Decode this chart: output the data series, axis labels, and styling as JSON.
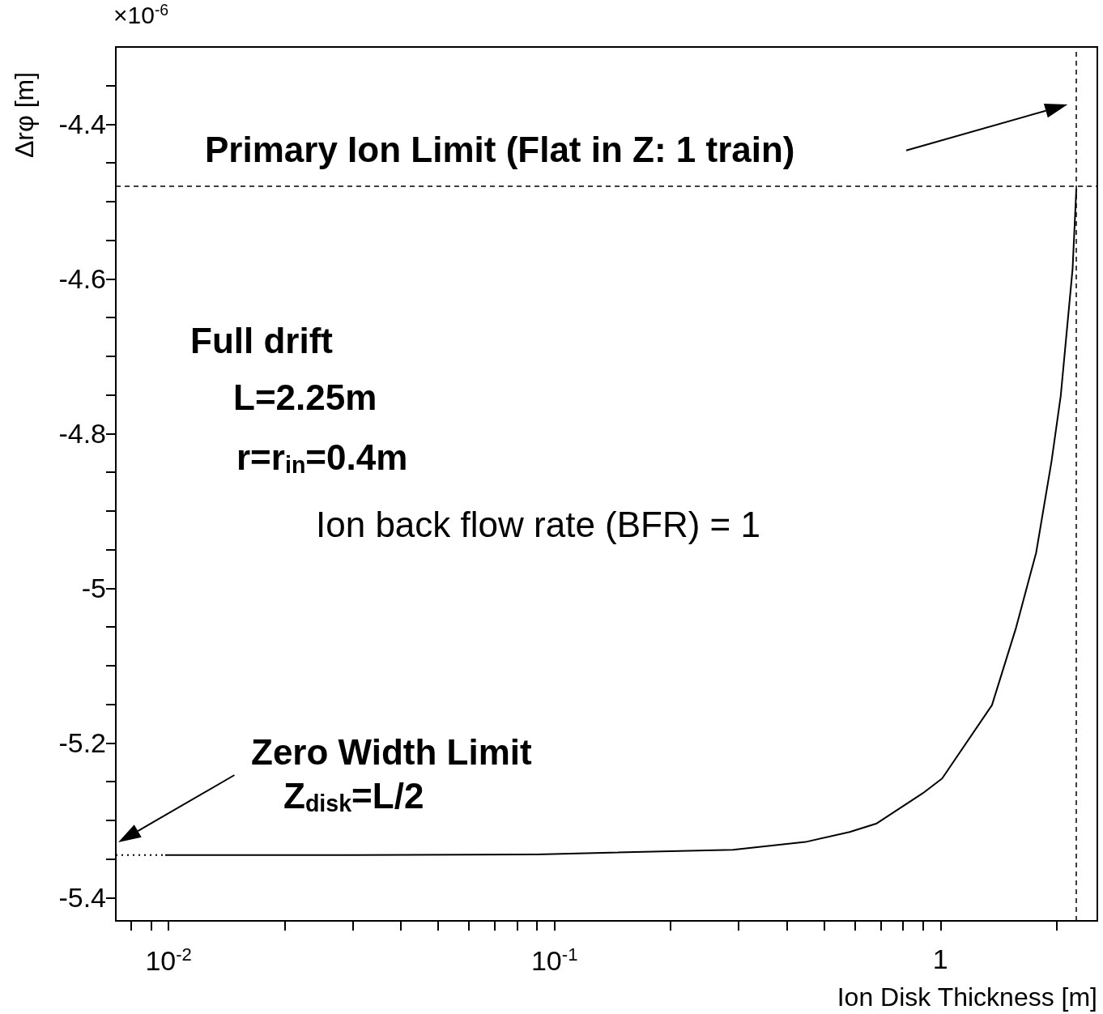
{
  "chart_data": {
    "type": "line",
    "xlabel": "Ion Disk Thickness [m]",
    "ylabel": "Δrφ [m]",
    "annotations": [
      "Primary Ion Limit (Flat in Z: 1 train)",
      "×10$^{-6}$",
      "Full drift",
      "L=2.25m",
      "r=r$_{in}$=0.4m",
      "Ion back flow rate (BFR) = 1",
      "Zero Width Limit",
      "Z$_{disk}$=L/2"
    ],
    "series": [
      {
        "color": "#000000",
        "line_style": "solid",
        "x": [
          0.0098,
          0.03,
          0.09,
          0.29,
          0.447,
          0.582,
          0.684,
          0.9,
          1.01,
          1.36,
          1.57,
          1.77,
          1.94,
          2.05,
          2.2,
          2.25
        ],
        "values": [
          -5.345,
          -5.345,
          -5.344,
          -5.338,
          -5.328,
          -5.315,
          -5.304,
          -5.265,
          -5.246,
          -5.151,
          -5.051,
          -4.954,
          -4.836,
          -4.751,
          -4.587,
          -4.483
        ]
      },
      {
        "color": "#000000",
        "line_style": "dotted",
        "x": [
          0.0073,
          0.0098
        ],
        "values": [
          -5.345,
          -5.345
        ]
      }
    ],
    "ref_lines": [
      {
        "axis": "y",
        "value": -4.48,
        "line_style": "dashed"
      },
      {
        "axis": "x",
        "value": 2.25,
        "line_style": "dashed"
      }
    ],
    "log": "x",
    "xlim": [
      0.0073,
      2.55
    ],
    "ylim": [
      -5.43,
      -4.3
    ],
    "xticks": [
      {
        "value": 0.008,
        "label": null
      },
      {
        "value": 0.009,
        "label": null
      },
      {
        "value": 0.01,
        "label": "10$^{-2}$"
      },
      {
        "value": 0.02,
        "label": null
      },
      {
        "value": 0.03,
        "label": null
      },
      {
        "value": 0.04,
        "label": null
      },
      {
        "value": 0.05,
        "label": null
      },
      {
        "value": 0.06,
        "label": null
      },
      {
        "value": 0.07,
        "label": null
      },
      {
        "value": 0.08,
        "label": null
      },
      {
        "value": 0.09,
        "label": null
      },
      {
        "value": 0.1,
        "label": "10$^{-1}$"
      },
      {
        "value": 0.2,
        "label": null
      },
      {
        "value": 0.3,
        "label": null
      },
      {
        "value": 0.4,
        "label": null
      },
      {
        "value": 0.5,
        "label": null
      },
      {
        "value": 0.6,
        "label": null
      },
      {
        "value": 0.7,
        "label": null
      },
      {
        "value": 0.8,
        "label": null
      },
      {
        "value": 0.9,
        "label": null
      },
      1,
      {
        "value": 2,
        "label": null
      }
    ],
    "yticks": [
      -5.4,
      {
        "value": -5.35,
        "label": null
      },
      {
        "value": -5.3,
        "label": null
      },
      {
        "value": -5.25,
        "label": null
      },
      -5.2,
      {
        "value": -5.15,
        "label": null
      },
      {
        "value": -5.1,
        "label": null
      },
      {
        "value": -5.05,
        "label": null
      },
      -5,
      {
        "value": -4.95,
        "label": null
      },
      {
        "value": -4.9,
        "label": null
      },
      {
        "value": -4.85,
        "label": null
      },
      -4.8,
      {
        "value": -4.75,
        "label": null
      },
      {
        "value": -4.7,
        "label": null
      },
      {
        "value": -4.65,
        "label": null
      },
      -4.6,
      {
        "value": -4.55,
        "label": null
      },
      {
        "value": -4.5,
        "label": null
      },
      {
        "value": -4.45,
        "label": null
      },
      -4.4,
      {
        "value": -4.35,
        "label": null
      }
    ],
    "grid": false,
    "marker": "none"
  }
}
